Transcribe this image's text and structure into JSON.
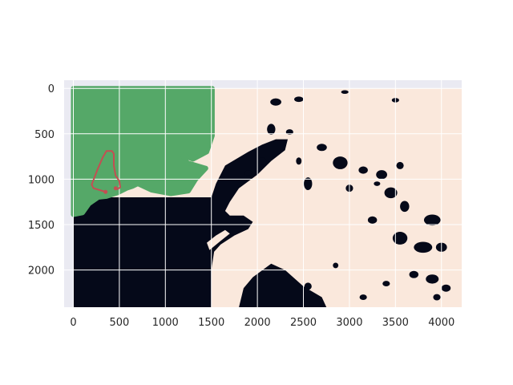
{
  "chart_data": {
    "type": "heatmap",
    "title": "",
    "xlabel": "",
    "ylabel": "",
    "xlim": [
      -100,
      4220
    ],
    "ylim": [
      2410,
      -90
    ],
    "y_inverted": true,
    "xticks": [
      0,
      500,
      1000,
      1500,
      2000,
      2500,
      3000,
      3500,
      4000
    ],
    "yticks": [
      0,
      500,
      1000,
      1500,
      2000
    ],
    "image_extent": {
      "x": [
        0,
        4220
      ],
      "y": [
        0,
        2410
      ]
    },
    "grid": true,
    "legend": "none",
    "colors": {
      "axes_background": "#eaeaf2",
      "image_land": "#fae8dc",
      "image_water": "#050919",
      "overlay_region": "#55a868",
      "route_line": "#c44e52",
      "grid": "#ffffff"
    },
    "overlay_region": {
      "name": "",
      "outline": [
        [
          0,
          0
        ],
        [
          1510,
          0
        ],
        [
          1510,
          520
        ],
        [
          1450,
          700
        ],
        [
          1300,
          780
        ],
        [
          1180,
          730
        ],
        [
          1240,
          820
        ],
        [
          1440,
          880
        ],
        [
          1330,
          1000
        ],
        [
          1250,
          1130
        ],
        [
          1060,
          1160
        ],
        [
          850,
          1120
        ],
        [
          700,
          1050
        ],
        [
          640,
          1080
        ],
        [
          580,
          1100
        ],
        [
          480,
          1150
        ],
        [
          360,
          1190
        ],
        [
          270,
          1200
        ],
        [
          170,
          1270
        ],
        [
          100,
          1370
        ],
        [
          0,
          1390
        ]
      ]
    },
    "route": {
      "points": [
        [
          350,
          1140
        ],
        [
          220,
          1100
        ],
        [
          200,
          1060
        ],
        [
          260,
          900
        ],
        [
          320,
          760
        ],
        [
          360,
          690
        ],
        [
          420,
          690
        ],
        [
          440,
          720
        ],
        [
          440,
          850
        ],
        [
          460,
          960
        ],
        [
          500,
          1020
        ],
        [
          510,
          1090
        ],
        [
          480,
          1110
        ],
        [
          460,
          1100
        ]
      ],
      "markers": [
        [
          350,
          1140
        ],
        [
          460,
          1100
        ]
      ]
    }
  }
}
